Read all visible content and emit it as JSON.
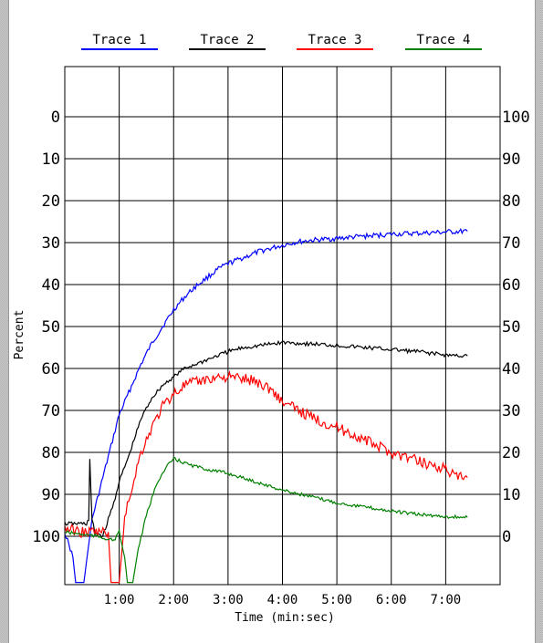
{
  "chart_data": {
    "type": "line",
    "xlabel": "Time (min:sec)",
    "ylabel": "Percent",
    "x_unit": "minutes",
    "xlim": [
      0,
      8.0
    ],
    "x_ticks": [
      {
        "value": 1,
        "label": "1:00"
      },
      {
        "value": 2,
        "label": "2:00"
      },
      {
        "value": 3,
        "label": "3:00"
      },
      {
        "value": 4,
        "label": "4:00"
      },
      {
        "value": 5,
        "label": "5:00"
      },
      {
        "value": 6,
        "label": "6:00"
      },
      {
        "value": 7,
        "label": "7:00"
      }
    ],
    "left_axis": {
      "ticks": [
        "0",
        "10",
        "20",
        "30",
        "40",
        "50",
        "60",
        "70",
        "80",
        "90",
        "100"
      ],
      "inverted": true,
      "range": [
        -12,
        111
      ]
    },
    "right_axis": {
      "ticks": [
        "100",
        "90",
        "80",
        "70",
        "60",
        "50",
        "40",
        "30",
        "20",
        "10",
        "0"
      ],
      "range": [
        112,
        -11
      ]
    },
    "grid": true,
    "legend_position": "top",
    "series": [
      {
        "name": "Trace 1",
        "color": "#0000ff",
        "x": [
          0,
          0.15,
          0.2,
          0.3,
          0.35,
          0.5,
          0.7,
          0.9,
          1.0,
          1.2,
          1.4,
          1.6,
          1.8,
          2.0,
          2.2,
          2.4,
          2.6,
          2.8,
          3.0,
          3.3,
          3.6,
          3.9,
          4.2,
          4.5,
          5.0,
          5.5,
          6.0,
          6.5,
          7.0,
          7.4
        ],
        "y": [
          99,
          105,
          111,
          111,
          111,
          96,
          86,
          76,
          71,
          65,
          59,
          54,
          50,
          46,
          43,
          40.5,
          38.5,
          36.5,
          35,
          33.5,
          32,
          31,
          30,
          29.5,
          29,
          28.5,
          28,
          27.8,
          27.5,
          27.3
        ]
      },
      {
        "name": "Trace 2",
        "color": "#000000",
        "x": [
          0,
          0.4,
          0.44,
          0.46,
          0.5,
          0.55,
          0.7,
          0.9,
          1.0,
          1.2,
          1.4,
          1.6,
          1.8,
          2.0,
          2.2,
          2.4,
          2.6,
          2.8,
          3.0,
          3.3,
          3.6,
          3.9,
          4.0,
          4.3,
          4.6,
          5.0,
          5.5,
          6.0,
          6.5,
          7.0,
          7.4
        ],
        "y": [
          97,
          97,
          96,
          82,
          96,
          99,
          100,
          92,
          87,
          80,
          72,
          67,
          64,
          62,
          60,
          59,
          58,
          57,
          56,
          55,
          54.5,
          54,
          53.8,
          54,
          54.2,
          54.5,
          55,
          55.5,
          56,
          56.8,
          57
        ]
      },
      {
        "name": "Trace 3",
        "color": "#ff0000",
        "x": [
          0,
          0.3,
          0.6,
          0.8,
          0.85,
          0.95,
          1.0,
          1.1,
          1.2,
          1.4,
          1.6,
          1.8,
          2.0,
          2.2,
          2.5,
          2.8,
          3.0,
          3.3,
          3.5,
          3.8,
          4.0,
          4.3,
          4.6,
          5.0,
          5.5,
          6.0,
          6.5,
          7.0,
          7.2,
          7.4
        ],
        "y": [
          98,
          99,
          99,
          99,
          111,
          111,
          111,
          96,
          90,
          80,
          74,
          69,
          66,
          64,
          63,
          62,
          62,
          62.5,
          63,
          65,
          68,
          70,
          72,
          74,
          77,
          80,
          82,
          84,
          86,
          86
        ]
      },
      {
        "name": "Trace 4",
        "color": "#008000",
        "x": [
          0,
          0.3,
          0.6,
          0.9,
          1.0,
          1.1,
          1.15,
          1.25,
          1.35,
          1.5,
          1.7,
          1.9,
          2.0,
          2.3,
          2.6,
          3.0,
          3.5,
          4.0,
          4.5,
          5.0,
          5.5,
          6.0,
          6.5,
          7.0,
          7.4
        ],
        "y": [
          99,
          99.5,
          100,
          101,
          99,
          105,
          111,
          111,
          103,
          95,
          87,
          83,
          81.5,
          83,
          84,
          85,
          87,
          89,
          90.5,
          92,
          93,
          94,
          94.8,
          95.3,
          95.5
        ]
      }
    ]
  }
}
